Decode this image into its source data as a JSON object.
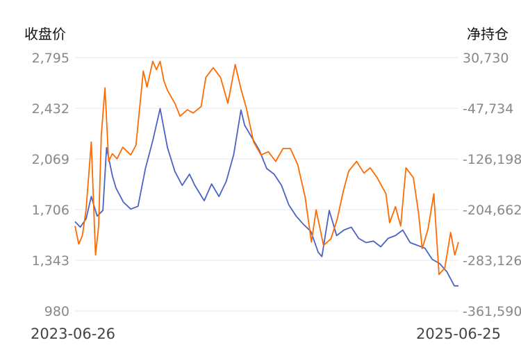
{
  "chart_data": {
    "type": "line",
    "title": "",
    "ylabel_left": "收盘价",
    "ylabel_right": "净持仓",
    "y_left_ticks": [
      "2,795",
      "2,432",
      "2,069",
      "1,706",
      "1,343",
      "980"
    ],
    "y_right_ticks": [
      "30,730",
      "-47,734",
      "-126,198",
      "-204,662",
      "-283,126",
      "-361,590"
    ],
    "ylim_left": [
      980,
      2795
    ],
    "ylim_right": [
      -361590,
      30730
    ],
    "x_start_label": "2023-06-26",
    "x_end_label": "2025-06-25",
    "grid": true,
    "colors": {
      "close": "#4a62c4",
      "net_position": "#ff6a00"
    },
    "series": [
      {
        "key": "close",
        "axis": "left",
        "x": [
          "2023-06-26",
          "2023-07-06",
          "2023-07-17",
          "2023-07-27",
          "2023-08-07",
          "2023-08-18",
          "2023-08-25",
          "2023-09-05",
          "2023-09-12",
          "2023-09-26",
          "2023-10-10",
          "2023-10-24",
          "2023-11-07",
          "2023-11-21",
          "2023-12-05",
          "2023-12-19",
          "2024-01-02",
          "2024-01-16",
          "2024-01-30",
          "2024-02-09",
          "2024-02-27",
          "2024-03-12",
          "2024-03-26",
          "2024-04-09",
          "2024-04-23",
          "2024-05-07",
          "2024-05-14",
          "2024-05-28",
          "2024-06-11",
          "2024-06-25",
          "2024-07-09",
          "2024-07-23",
          "2024-08-06",
          "2024-08-20",
          "2024-09-03",
          "2024-09-17",
          "2024-10-01",
          "2024-10-08",
          "2024-10-22",
          "2024-11-05",
          "2024-11-19",
          "2024-12-03",
          "2024-12-17",
          "2024-12-31",
          "2025-01-14",
          "2025-01-28",
          "2025-02-11",
          "2025-02-25",
          "2025-03-11",
          "2025-03-25",
          "2025-04-08",
          "2025-04-22",
          "2025-05-06",
          "2025-05-20",
          "2025-06-03",
          "2025-06-17",
          "2025-06-25"
        ],
        "y": [
          1620,
          1580,
          1640,
          1800,
          1660,
          1700,
          2150,
          1950,
          1860,
          1760,
          1710,
          1730,
          2000,
          2200,
          2430,
          2150,
          1980,
          1880,
          1960,
          1880,
          1770,
          1890,
          1800,
          1910,
          2100,
          2420,
          2310,
          2220,
          2130,
          2000,
          1960,
          1880,
          1740,
          1660,
          1600,
          1550,
          1400,
          1370,
          1700,
          1520,
          1560,
          1580,
          1500,
          1470,
          1480,
          1440,
          1500,
          1520,
          1560,
          1470,
          1450,
          1430,
          1350,
          1320,
          1260,
          1160,
          1160
        ]
      },
      {
        "key": "net_position",
        "axis": "right",
        "x": [
          "2023-06-26",
          "2023-07-03",
          "2023-07-10",
          "2023-07-17",
          "2023-07-27",
          "2023-08-04",
          "2023-08-10",
          "2023-08-15",
          "2023-08-22",
          "2023-08-29",
          "2023-09-05",
          "2023-09-14",
          "2023-09-25",
          "2023-10-10",
          "2023-10-20",
          "2023-11-03",
          "2023-11-10",
          "2023-11-21",
          "2023-11-28",
          "2023-12-05",
          "2023-12-12",
          "2023-12-19",
          "2024-01-02",
          "2024-01-12",
          "2024-01-26",
          "2024-02-06",
          "2024-02-21",
          "2024-03-01",
          "2024-03-15",
          "2024-03-29",
          "2024-04-12",
          "2024-04-26",
          "2024-05-07",
          "2024-05-17",
          "2024-05-31",
          "2024-06-14",
          "2024-06-28",
          "2024-07-12",
          "2024-07-26",
          "2024-08-09",
          "2024-08-23",
          "2024-09-06",
          "2024-09-18",
          "2024-09-27",
          "2024-10-11",
          "2024-10-25",
          "2024-11-06",
          "2024-11-18",
          "2024-11-28",
          "2024-12-13",
          "2024-12-27",
          "2025-01-08",
          "2025-01-21",
          "2025-02-07",
          "2025-02-14",
          "2025-02-25",
          "2025-03-07",
          "2025-03-17",
          "2025-03-31",
          "2025-04-10",
          "2025-04-17",
          "2025-04-28",
          "2025-05-09",
          "2025-05-19",
          "2025-05-30",
          "2025-06-10",
          "2025-06-18",
          "2025-06-25"
        ],
        "y": [
          -230000,
          -258000,
          -245000,
          -205000,
          -100000,
          -275000,
          -230000,
          -90000,
          -16000,
          -130000,
          -118000,
          -126000,
          -108000,
          -120000,
          -105000,
          10000,
          -15000,
          25000,
          12000,
          25000,
          -5000,
          -20000,
          -40000,
          -60000,
          -50000,
          -55000,
          -45000,
          0,
          15000,
          0,
          -40000,
          20000,
          -18000,
          -47000,
          -100000,
          -120000,
          -115000,
          -130000,
          -110000,
          -110000,
          -135000,
          -185000,
          -255000,
          -205000,
          -260000,
          -250000,
          -220000,
          -175000,
          -145000,
          -130000,
          -148000,
          -140000,
          -155000,
          -180000,
          -225000,
          -200000,
          -230000,
          -140000,
          -155000,
          -210000,
          -265000,
          -235000,
          -180000,
          -305000,
          -295000,
          -240000,
          -275000,
          -255000
        ]
      }
    ]
  }
}
